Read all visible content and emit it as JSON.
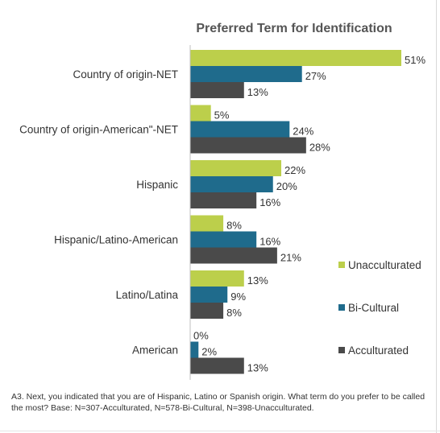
{
  "chart_data": {
    "type": "bar",
    "orientation": "horizontal",
    "title": "Preferred Term for Identification",
    "categories": [
      "Country of origin-NET",
      "Country of origin-American\"-NET",
      "Hispanic",
      "Hispanic/Latino-American",
      "Latino/Latina",
      "American"
    ],
    "series": [
      {
        "name": "Unacculturated",
        "color": "#bccf4b",
        "values": [
          51,
          5,
          22,
          8,
          13,
          0
        ]
      },
      {
        "name": "Bi-Cultural",
        "color": "#1f6b8c",
        "values": [
          27,
          24,
          20,
          16,
          9,
          2
        ]
      },
      {
        "name": "Acculturated",
        "color": "#4a4a4a",
        "values": [
          13,
          28,
          16,
          21,
          8,
          13
        ]
      }
    ],
    "value_suffix": "%",
    "xlim": [
      0,
      51
    ],
    "grid": false,
    "legend_position": "right"
  },
  "footnote": "A3. Next, you indicated that you are of Hispanic, Latino or Spanish origin. What term do you prefer to be called the most? Base: N=307-Acculturated, N=578-Bi-Cultural, N=398-Unacculturated."
}
